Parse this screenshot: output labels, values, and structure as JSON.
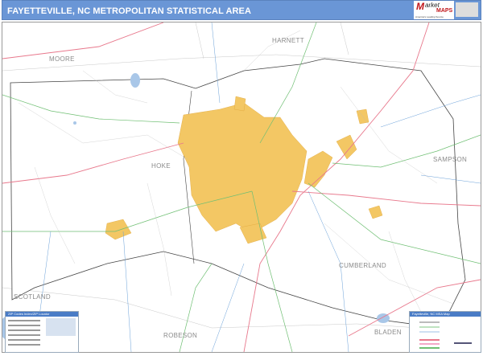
{
  "header": {
    "title": "FAYETTEVILLE, NC METROPOLITAN STATISTICAL AREA",
    "logo": {
      "brand_m": "M",
      "brand_rest": "arket",
      "brand_maps": "MAPS",
      "tagline": "America's Leading Source of Business Maps"
    }
  },
  "map": {
    "counties": [
      "MOORE",
      "HARNETT",
      "HOKE",
      "SAMPSON",
      "SCOTLAND",
      "CUMBERLAND",
      "ROBESON",
      "BLADEN"
    ],
    "colors": {
      "urban": "#f3c764",
      "water": "#a9c7e8",
      "interstate": "#e8788c",
      "us_highway": "#6fbf73",
      "state_road": "#6aa0d8",
      "county_line": "#555555"
    }
  },
  "legends": {
    "zip_index_title": "ZIP Codes Index/ZIP Locator",
    "map_legend_title": "Fayetteville, NC MSA Map"
  }
}
